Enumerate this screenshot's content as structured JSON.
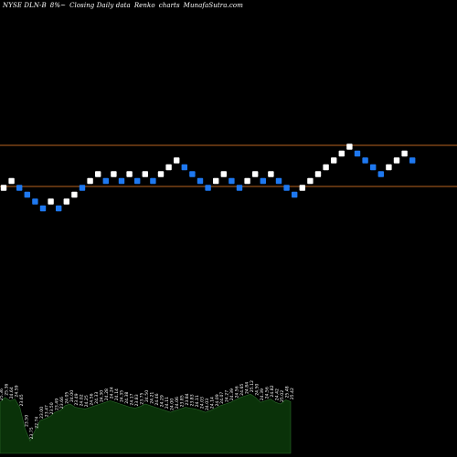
{
  "header": {
    "symbol": "NYSE DLN-B",
    "change": "8%~",
    "desc1": "Closing Daily data",
    "desc2": "Renko",
    "desc3": "charts",
    "site": "MunafaSutra.com"
  },
  "colors": {
    "background": "#000000",
    "up_brick": "#ffffff",
    "down_brick": "#1e78f0",
    "level_line": "#b8651f",
    "volume_fill": "#0a3209",
    "volume_line": "#2a6a2a",
    "label": "#ffffff"
  },
  "chart_data": {
    "type": "renko",
    "title": "NYSE DLN-B 8%~ Closing Daily data Renko charts MunafaSutra.com",
    "bricks": [
      {
        "level": 0,
        "dir": "up"
      },
      {
        "level": 1,
        "dir": "up"
      },
      {
        "level": 0,
        "dir": "down"
      },
      {
        "level": -1,
        "dir": "down"
      },
      {
        "level": -2,
        "dir": "down"
      },
      {
        "level": -3,
        "dir": "down"
      },
      {
        "level": -2,
        "dir": "up"
      },
      {
        "level": -3,
        "dir": "down"
      },
      {
        "level": -2,
        "dir": "up"
      },
      {
        "level": -1,
        "dir": "up"
      },
      {
        "level": 0,
        "dir": "down"
      },
      {
        "level": 1,
        "dir": "up"
      },
      {
        "level": 2,
        "dir": "up"
      },
      {
        "level": 1,
        "dir": "down"
      },
      {
        "level": 2,
        "dir": "up"
      },
      {
        "level": 1,
        "dir": "down"
      },
      {
        "level": 2,
        "dir": "up"
      },
      {
        "level": 1,
        "dir": "down"
      },
      {
        "level": 2,
        "dir": "up"
      },
      {
        "level": 1,
        "dir": "down"
      },
      {
        "level": 2,
        "dir": "up"
      },
      {
        "level": 3,
        "dir": "up"
      },
      {
        "level": 4,
        "dir": "up"
      },
      {
        "level": 3,
        "dir": "down"
      },
      {
        "level": 2,
        "dir": "down"
      },
      {
        "level": 1,
        "dir": "down"
      },
      {
        "level": 0,
        "dir": "down"
      },
      {
        "level": 1,
        "dir": "up"
      },
      {
        "level": 2,
        "dir": "up"
      },
      {
        "level": 1,
        "dir": "down"
      },
      {
        "level": 0,
        "dir": "down"
      },
      {
        "level": 1,
        "dir": "up"
      },
      {
        "level": 2,
        "dir": "up"
      },
      {
        "level": 1,
        "dir": "down"
      },
      {
        "level": 2,
        "dir": "up"
      },
      {
        "level": 1,
        "dir": "down"
      },
      {
        "level": 0,
        "dir": "down"
      },
      {
        "level": -1,
        "dir": "down"
      },
      {
        "level": 0,
        "dir": "up"
      },
      {
        "level": 1,
        "dir": "up"
      },
      {
        "level": 2,
        "dir": "up"
      },
      {
        "level": 3,
        "dir": "up"
      },
      {
        "level": 4,
        "dir": "up"
      },
      {
        "level": 5,
        "dir": "up"
      },
      {
        "level": 6,
        "dir": "up"
      },
      {
        "level": 5,
        "dir": "down"
      },
      {
        "level": 4,
        "dir": "down"
      },
      {
        "level": 3,
        "dir": "down"
      },
      {
        "level": 2,
        "dir": "down"
      },
      {
        "level": 3,
        "dir": "up"
      },
      {
        "level": 4,
        "dir": "up"
      },
      {
        "level": 5,
        "dir": "up"
      },
      {
        "level": 4,
        "dir": "down"
      }
    ],
    "reference_lines": [
      6.2,
      0.2
    ],
    "price_labels": [
      "25.36",
      "25.36",
      "24.64",
      "24.59",
      "23.65",
      "23.50",
      "23.75",
      "22.74",
      "23.00",
      "23.47",
      "23.50",
      "23.49",
      "23.66",
      "24.05",
      "24.00",
      "23.49",
      "24.02",
      "24.25",
      "24.56",
      "24.33",
      "24.30",
      "24.28",
      "24.24",
      "24.14",
      "24.35",
      "24.38",
      "24.17",
      "23.83",
      "23.75",
      "24.50",
      "24.21",
      "24.46",
      "24.29",
      "24.11",
      "24.00",
      "24.06",
      "23.85",
      "23.84",
      "23.83",
      "24.11",
      "24.03",
      "24.03",
      "24.14",
      "24.09",
      "24.07",
      "24.27",
      "24.39",
      "24.56",
      "24.65",
      "24.84",
      "25.12",
      "24.50",
      "24.39",
      "24.56",
      "24.82",
      "24.42",
      "25.02",
      "25.48",
      "25.42"
    ],
    "volume_profile": [
      0.62,
      0.68,
      0.64,
      0.66,
      0.55,
      0.3,
      0.15,
      0.28,
      0.4,
      0.42,
      0.45,
      0.5,
      0.52,
      0.58,
      0.6,
      0.56,
      0.55,
      0.54,
      0.56,
      0.58,
      0.6,
      0.62,
      0.64,
      0.62,
      0.6,
      0.58,
      0.56,
      0.55,
      0.57,
      0.6,
      0.58,
      0.56,
      0.54,
      0.52,
      0.5,
      0.52,
      0.54,
      0.56,
      0.55,
      0.54,
      0.52,
      0.5,
      0.52,
      0.55,
      0.58,
      0.6,
      0.62,
      0.65,
      0.68,
      0.7,
      0.72,
      0.68,
      0.62,
      0.64,
      0.66,
      0.62,
      0.6,
      0.65,
      0.63
    ]
  }
}
